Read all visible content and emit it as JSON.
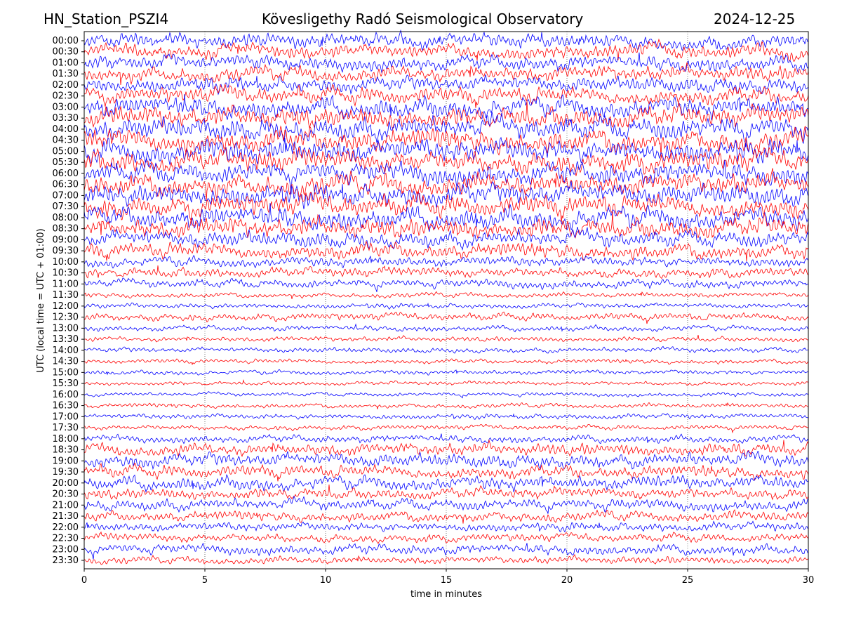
{
  "header": {
    "station": "HN_Station_PSZI4",
    "observatory": "Kövesligethy Radó Seismological Observatory",
    "date": "2024-12-25"
  },
  "chart_data": {
    "type": "line",
    "title": "Kövesligethy Radó Seismological Observatory",
    "xlabel": "time in minutes",
    "ylabel": "UTC (local time = UTC + 01:00)",
    "xlim": [
      0,
      30
    ],
    "x_ticks": [
      "0",
      "5",
      "10",
      "15",
      "20",
      "25",
      "30"
    ],
    "x_tick_values": [
      0,
      5,
      10,
      15,
      20,
      25,
      30
    ],
    "grid": "vertical dotted at x ticks",
    "series_colors": [
      "#0000ff",
      "#ff0000"
    ],
    "rows": [
      "00:00",
      "00:30",
      "01:00",
      "01:30",
      "02:00",
      "02:30",
      "03:00",
      "03:30",
      "04:00",
      "04:30",
      "05:00",
      "05:30",
      "06:00",
      "06:30",
      "07:00",
      "07:30",
      "08:00",
      "08:30",
      "09:00",
      "09:30",
      "10:00",
      "10:30",
      "11:00",
      "11:30",
      "12:00",
      "12:30",
      "13:00",
      "13:30",
      "14:00",
      "14:30",
      "15:00",
      "15:30",
      "16:00",
      "16:30",
      "17:00",
      "17:30",
      "18:00",
      "18:30",
      "19:00",
      "19:30",
      "20:00",
      "20:30",
      "21:00",
      "21:30",
      "22:00",
      "22:30",
      "23:00",
      "23:30"
    ],
    "relative_amplitude": [
      0.6,
      0.6,
      0.6,
      0.6,
      0.6,
      0.65,
      0.8,
      0.85,
      0.9,
      0.9,
      0.9,
      0.9,
      0.85,
      0.85,
      0.85,
      0.85,
      0.85,
      0.8,
      0.65,
      0.6,
      0.4,
      0.4,
      0.35,
      0.2,
      0.2,
      0.3,
      0.22,
      0.2,
      0.2,
      0.18,
      0.18,
      0.16,
      0.16,
      0.18,
      0.2,
      0.2,
      0.3,
      0.5,
      0.55,
      0.5,
      0.55,
      0.45,
      0.45,
      0.4,
      0.35,
      0.35,
      0.4,
      0.3
    ]
  }
}
